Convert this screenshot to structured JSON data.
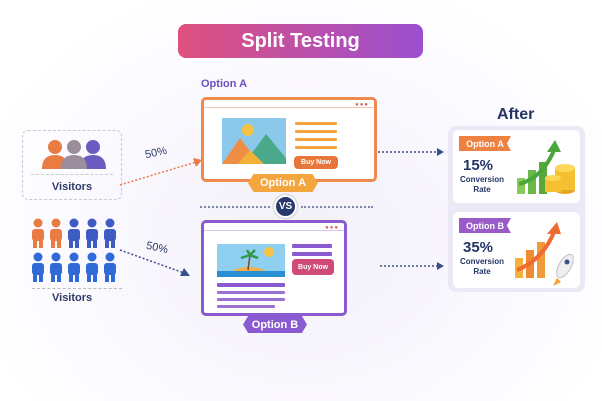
{
  "title": "Split Testing",
  "option_a_label": "Option A",
  "visitors_group_label": "Visitors",
  "visitors_crowd_label": "Visitors",
  "split_a": "50%",
  "split_b": "50%",
  "variant_a": {
    "button": "Buy Now",
    "tag": "Option A"
  },
  "variant_b": {
    "button": "Buy Now",
    "tag": "Option B"
  },
  "vs": "VS",
  "after": {
    "title": "After",
    "results": [
      {
        "tag": "Option A",
        "rate": "15%",
        "caption": "Conversion Rate"
      },
      {
        "tag": "Option B",
        "rate": "35%",
        "caption": "Conversion Rate"
      }
    ]
  },
  "colors": {
    "orange": "#ee8a4f",
    "purple": "#8a5ad0",
    "navy": "#243565",
    "pink": "#d04a7a"
  }
}
